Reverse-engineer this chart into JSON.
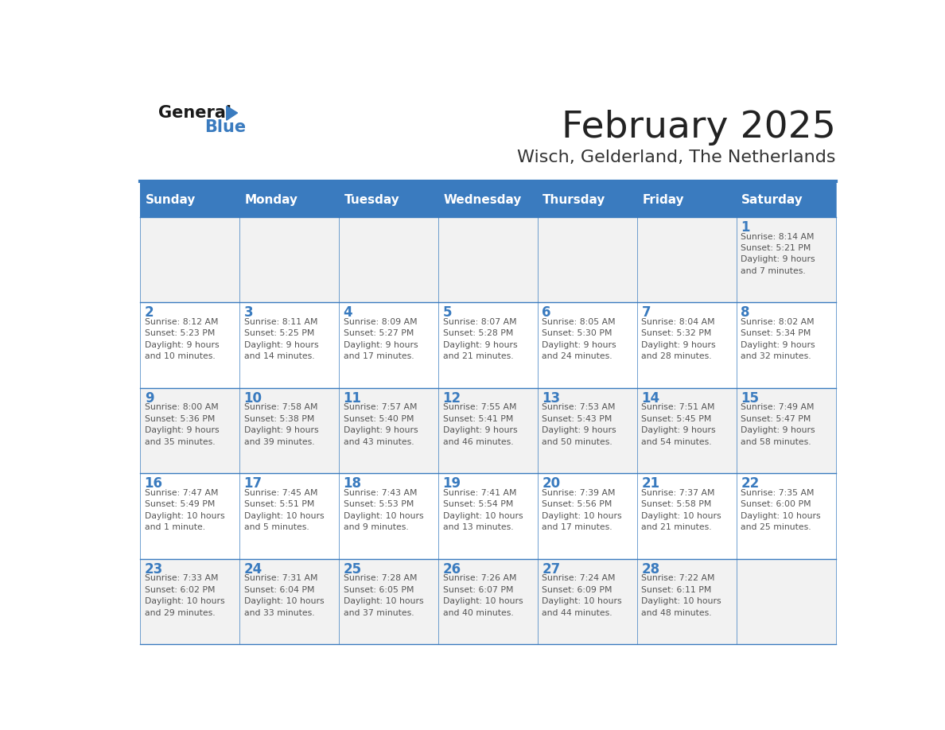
{
  "title": "February 2025",
  "subtitle": "Wisch, Gelderland, The Netherlands",
  "days_of_week": [
    "Sunday",
    "Monday",
    "Tuesday",
    "Wednesday",
    "Thursday",
    "Friday",
    "Saturday"
  ],
  "header_bg": "#3a7bbf",
  "header_text": "#ffffff",
  "cell_bg_odd": "#f2f2f2",
  "cell_bg_even": "#ffffff",
  "border_color": "#3a7bbf",
  "day_number_color": "#3a7bbf",
  "text_color": "#555555",
  "title_color": "#222222",
  "subtitle_color": "#333333",
  "logo_general_color": "#1a1a1a",
  "logo_blue_color": "#3a7bbf",
  "weeks": [
    [
      {
        "day": 0,
        "info": ""
      },
      {
        "day": 0,
        "info": ""
      },
      {
        "day": 0,
        "info": ""
      },
      {
        "day": 0,
        "info": ""
      },
      {
        "day": 0,
        "info": ""
      },
      {
        "day": 0,
        "info": ""
      },
      {
        "day": 1,
        "info": "Sunrise: 8:14 AM\nSunset: 5:21 PM\nDaylight: 9 hours\nand 7 minutes."
      }
    ],
    [
      {
        "day": 2,
        "info": "Sunrise: 8:12 AM\nSunset: 5:23 PM\nDaylight: 9 hours\nand 10 minutes."
      },
      {
        "day": 3,
        "info": "Sunrise: 8:11 AM\nSunset: 5:25 PM\nDaylight: 9 hours\nand 14 minutes."
      },
      {
        "day": 4,
        "info": "Sunrise: 8:09 AM\nSunset: 5:27 PM\nDaylight: 9 hours\nand 17 minutes."
      },
      {
        "day": 5,
        "info": "Sunrise: 8:07 AM\nSunset: 5:28 PM\nDaylight: 9 hours\nand 21 minutes."
      },
      {
        "day": 6,
        "info": "Sunrise: 8:05 AM\nSunset: 5:30 PM\nDaylight: 9 hours\nand 24 minutes."
      },
      {
        "day": 7,
        "info": "Sunrise: 8:04 AM\nSunset: 5:32 PM\nDaylight: 9 hours\nand 28 minutes."
      },
      {
        "day": 8,
        "info": "Sunrise: 8:02 AM\nSunset: 5:34 PM\nDaylight: 9 hours\nand 32 minutes."
      }
    ],
    [
      {
        "day": 9,
        "info": "Sunrise: 8:00 AM\nSunset: 5:36 PM\nDaylight: 9 hours\nand 35 minutes."
      },
      {
        "day": 10,
        "info": "Sunrise: 7:58 AM\nSunset: 5:38 PM\nDaylight: 9 hours\nand 39 minutes."
      },
      {
        "day": 11,
        "info": "Sunrise: 7:57 AM\nSunset: 5:40 PM\nDaylight: 9 hours\nand 43 minutes."
      },
      {
        "day": 12,
        "info": "Sunrise: 7:55 AM\nSunset: 5:41 PM\nDaylight: 9 hours\nand 46 minutes."
      },
      {
        "day": 13,
        "info": "Sunrise: 7:53 AM\nSunset: 5:43 PM\nDaylight: 9 hours\nand 50 minutes."
      },
      {
        "day": 14,
        "info": "Sunrise: 7:51 AM\nSunset: 5:45 PM\nDaylight: 9 hours\nand 54 minutes."
      },
      {
        "day": 15,
        "info": "Sunrise: 7:49 AM\nSunset: 5:47 PM\nDaylight: 9 hours\nand 58 minutes."
      }
    ],
    [
      {
        "day": 16,
        "info": "Sunrise: 7:47 AM\nSunset: 5:49 PM\nDaylight: 10 hours\nand 1 minute."
      },
      {
        "day": 17,
        "info": "Sunrise: 7:45 AM\nSunset: 5:51 PM\nDaylight: 10 hours\nand 5 minutes."
      },
      {
        "day": 18,
        "info": "Sunrise: 7:43 AM\nSunset: 5:53 PM\nDaylight: 10 hours\nand 9 minutes."
      },
      {
        "day": 19,
        "info": "Sunrise: 7:41 AM\nSunset: 5:54 PM\nDaylight: 10 hours\nand 13 minutes."
      },
      {
        "day": 20,
        "info": "Sunrise: 7:39 AM\nSunset: 5:56 PM\nDaylight: 10 hours\nand 17 minutes."
      },
      {
        "day": 21,
        "info": "Sunrise: 7:37 AM\nSunset: 5:58 PM\nDaylight: 10 hours\nand 21 minutes."
      },
      {
        "day": 22,
        "info": "Sunrise: 7:35 AM\nSunset: 6:00 PM\nDaylight: 10 hours\nand 25 minutes."
      }
    ],
    [
      {
        "day": 23,
        "info": "Sunrise: 7:33 AM\nSunset: 6:02 PM\nDaylight: 10 hours\nand 29 minutes."
      },
      {
        "day": 24,
        "info": "Sunrise: 7:31 AM\nSunset: 6:04 PM\nDaylight: 10 hours\nand 33 minutes."
      },
      {
        "day": 25,
        "info": "Sunrise: 7:28 AM\nSunset: 6:05 PM\nDaylight: 10 hours\nand 37 minutes."
      },
      {
        "day": 26,
        "info": "Sunrise: 7:26 AM\nSunset: 6:07 PM\nDaylight: 10 hours\nand 40 minutes."
      },
      {
        "day": 27,
        "info": "Sunrise: 7:24 AM\nSunset: 6:09 PM\nDaylight: 10 hours\nand 44 minutes."
      },
      {
        "day": 28,
        "info": "Sunrise: 7:22 AM\nSunset: 6:11 PM\nDaylight: 10 hours\nand 48 minutes."
      },
      {
        "day": 0,
        "info": ""
      }
    ]
  ]
}
